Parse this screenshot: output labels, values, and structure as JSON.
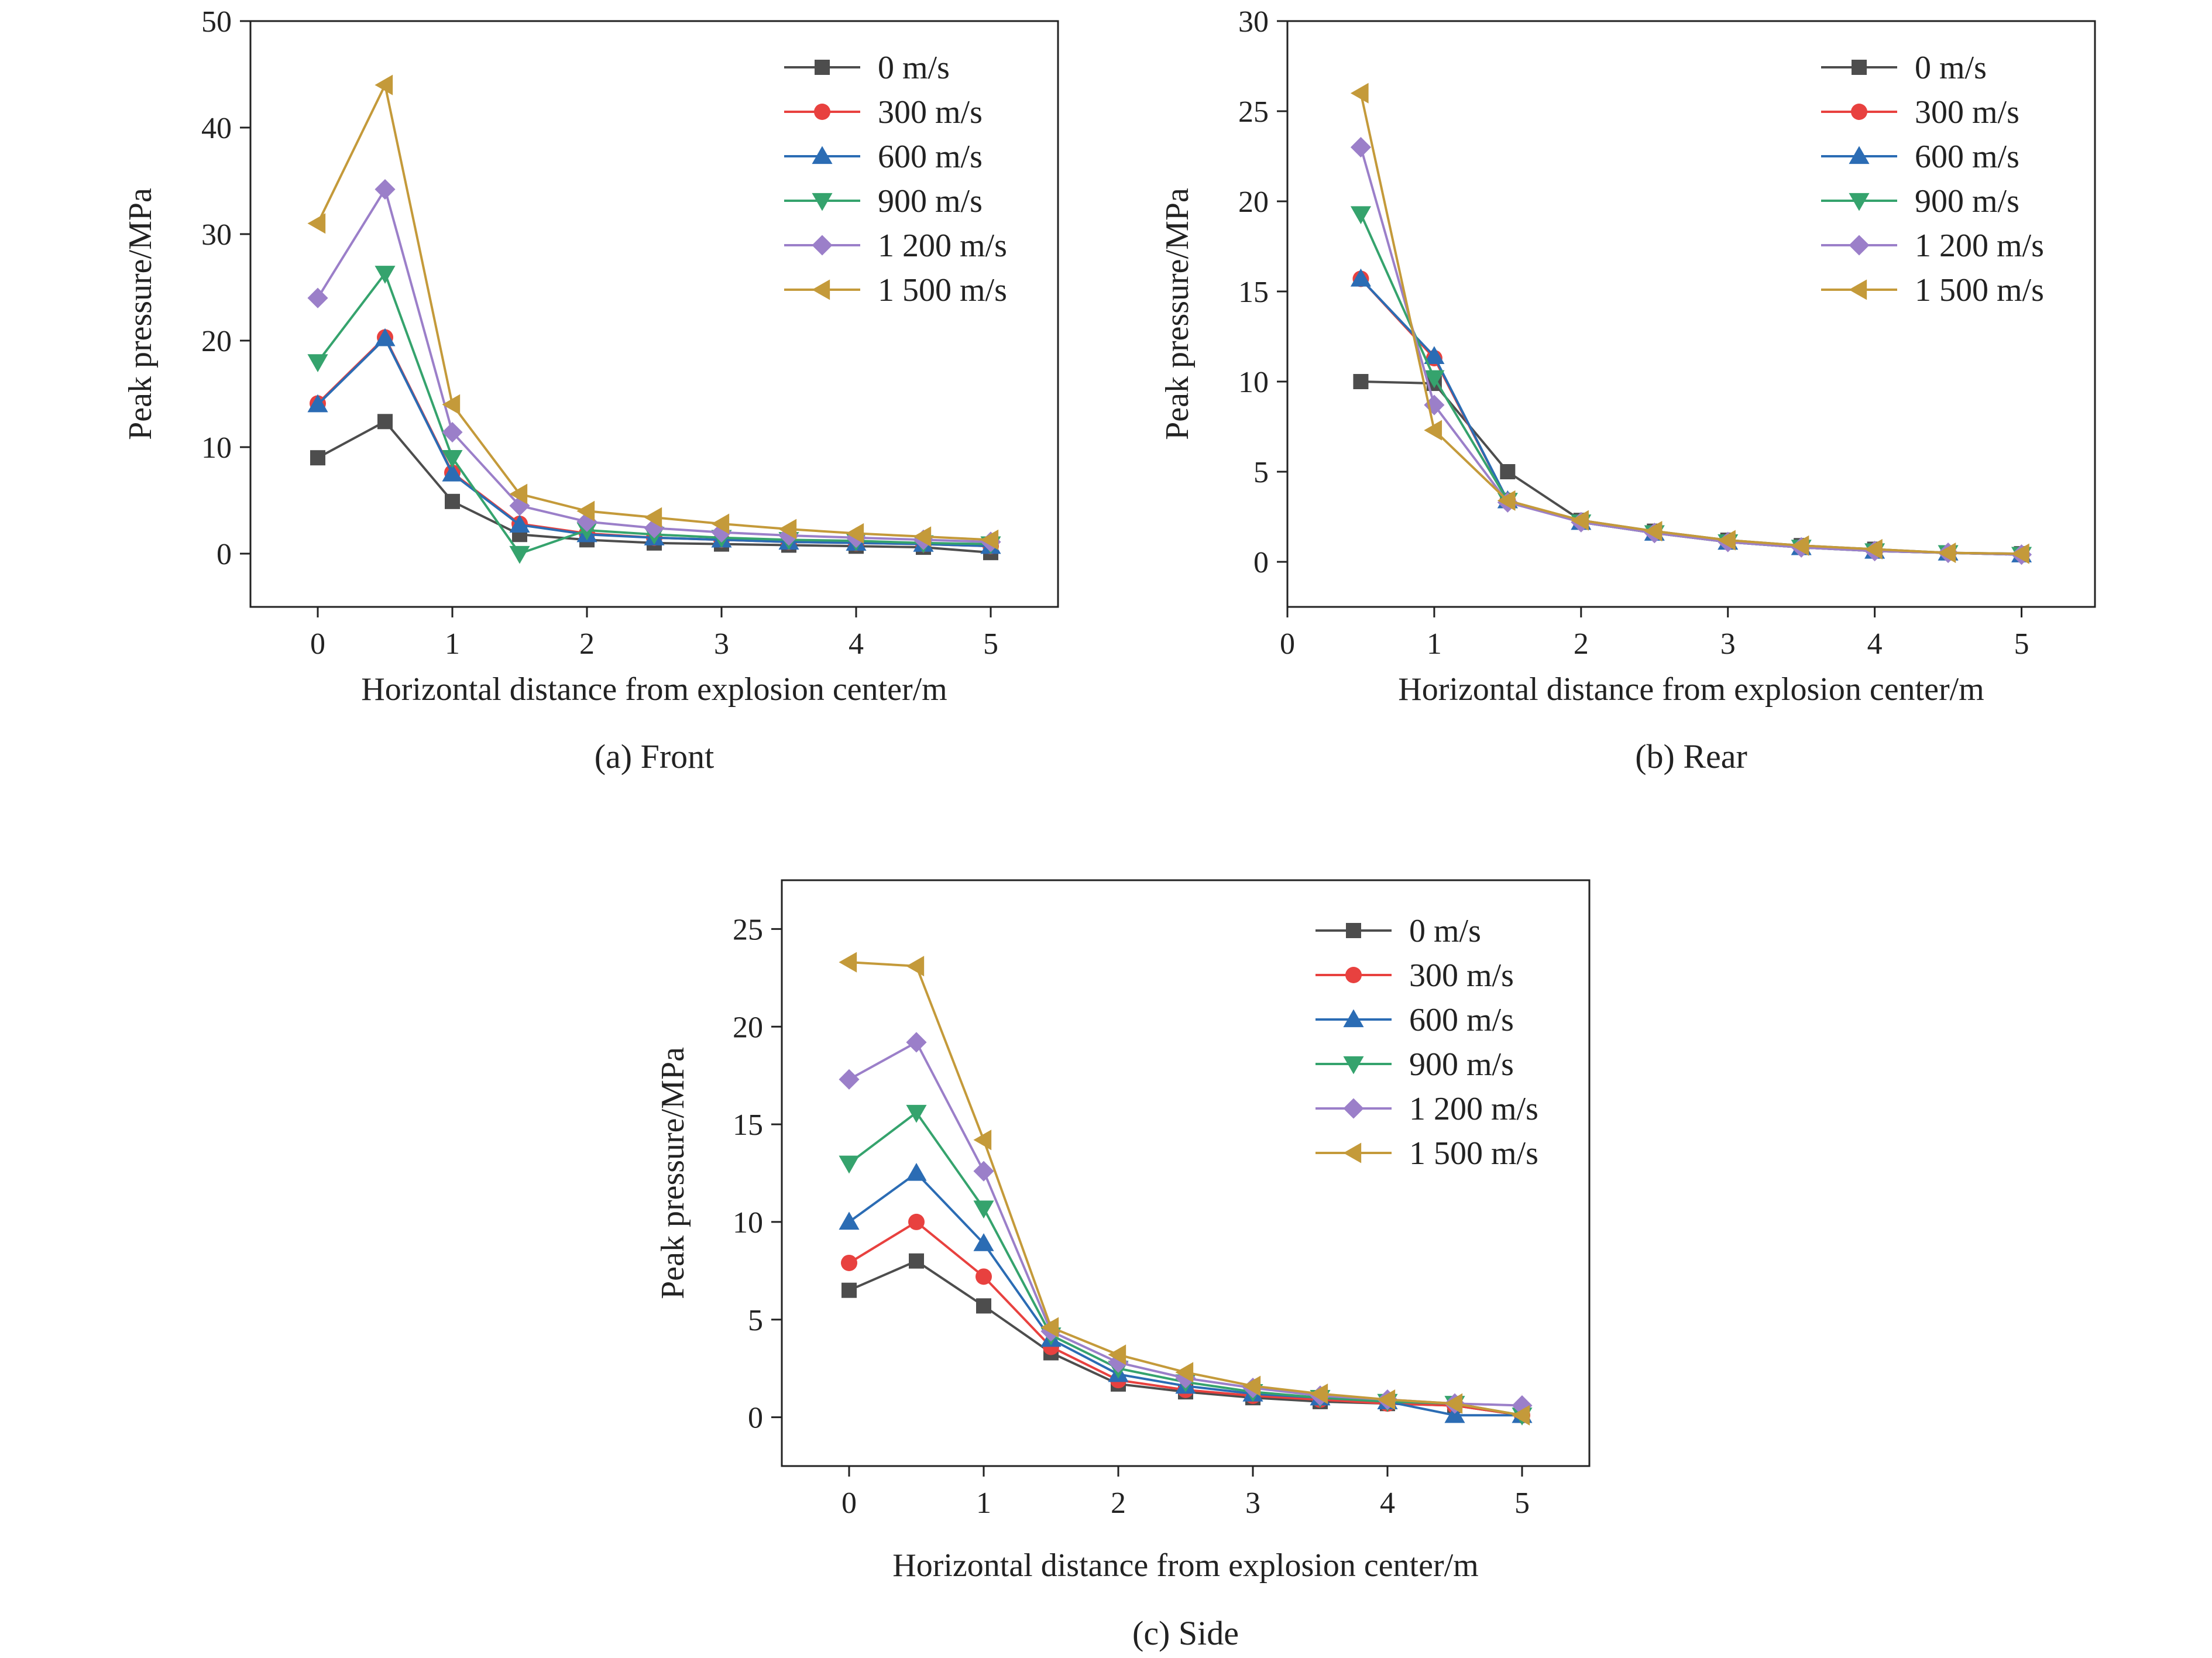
{
  "legend_title": "",
  "series_styles": [
    {
      "name": "0 m/s",
      "color": "#4d4d4d",
      "marker": "square"
    },
    {
      "name": "300 m/s",
      "color": "#e8413f",
      "marker": "circle"
    },
    {
      "name": "600 m/s",
      "color": "#2b6cb4",
      "marker": "triangle-up"
    },
    {
      "name": "900 m/s",
      "color": "#35a36d",
      "marker": "triangle-down"
    },
    {
      "name": "1 200 m/s",
      "color": "#9b7fc9",
      "marker": "diamond"
    },
    {
      "name": "1 500 m/s",
      "color": "#c49a3a",
      "marker": "triangle-left"
    }
  ],
  "chart_data": [
    {
      "type": "line",
      "caption": "(a) Front",
      "xlabel": "Horizontal distance from explosion center/m",
      "ylabel": "Peak pressure/MPa",
      "xlim": [
        -0.5,
        5.5
      ],
      "ylim": [
        -5,
        50
      ],
      "xticks": [
        0,
        1,
        2,
        3,
        4,
        5
      ],
      "yticks": [
        0,
        10,
        20,
        30,
        40,
        50
      ],
      "legend": "top-right",
      "x": [
        0,
        0.5,
        1,
        1.5,
        2,
        2.5,
        3,
        3.5,
        4,
        4.5,
        5
      ],
      "series": [
        {
          "name": "0 m/s",
          "values": [
            9.0,
            12.4,
            4.9,
            1.8,
            1.3,
            1.0,
            0.9,
            0.8,
            0.7,
            0.6,
            0.1
          ]
        },
        {
          "name": "300 m/s",
          "values": [
            14.1,
            20.3,
            7.6,
            2.8,
            1.9,
            1.5,
            1.3,
            1.1,
            1.0,
            0.9,
            0.7
          ]
        },
        {
          "name": "600 m/s",
          "values": [
            14.0,
            20.2,
            7.5,
            2.7,
            1.8,
            1.5,
            1.3,
            1.1,
            1.0,
            0.9,
            0.7
          ]
        },
        {
          "name": "900 m/s",
          "values": [
            18.0,
            26.3,
            9.0,
            0.0,
            2.2,
            1.8,
            1.5,
            1.3,
            1.2,
            1.0,
            0.9
          ]
        },
        {
          "name": "1 200 m/s",
          "values": [
            24.0,
            34.2,
            11.4,
            4.5,
            3.0,
            2.4,
            2.0,
            1.7,
            1.5,
            1.3,
            1.1
          ]
        },
        {
          "name": "1 500 m/s",
          "values": [
            31.0,
            44.0,
            14.0,
            5.6,
            4.0,
            3.4,
            2.8,
            2.3,
            1.9,
            1.6,
            1.3
          ]
        }
      ]
    },
    {
      "type": "line",
      "caption": "(b) Rear",
      "xlabel": "Horizontal distance from explosion center/m",
      "ylabel": "Peak pressure/MPa",
      "xlim": [
        0,
        5.5
      ],
      "ylim": [
        -2.5,
        30
      ],
      "xticks": [
        0,
        1,
        2,
        3,
        4,
        5
      ],
      "yticks": [
        0,
        5,
        10,
        15,
        20,
        25,
        30
      ],
      "legend": "top-right",
      "x": [
        0.5,
        1,
        1.5,
        2,
        2.5,
        3,
        3.5,
        4,
        4.5,
        5
      ],
      "series": [
        {
          "name": "0 m/s",
          "values": [
            10.0,
            9.9,
            5.0,
            2.3,
            1.7,
            1.2,
            0.9,
            0.7,
            0.5,
            0.45
          ]
        },
        {
          "name": "300 m/s",
          "values": [
            15.7,
            11.3,
            3.4,
            2.2,
            1.6,
            1.1,
            0.8,
            0.6,
            0.5,
            0.4
          ]
        },
        {
          "name": "600 m/s",
          "values": [
            15.7,
            11.4,
            3.4,
            2.2,
            1.6,
            1.1,
            0.8,
            0.6,
            0.5,
            0.4
          ]
        },
        {
          "name": "900 m/s",
          "values": [
            19.3,
            10.2,
            3.4,
            2.2,
            1.6,
            1.1,
            0.8,
            0.6,
            0.5,
            0.4
          ]
        },
        {
          "name": "1 200 m/s",
          "values": [
            23.0,
            8.7,
            3.3,
            2.2,
            1.6,
            1.1,
            0.8,
            0.6,
            0.5,
            0.4
          ]
        },
        {
          "name": "1 500 m/s",
          "values": [
            26.0,
            7.3,
            3.4,
            2.3,
            1.7,
            1.2,
            0.9,
            0.7,
            0.5,
            0.45
          ]
        }
      ]
    },
    {
      "type": "line",
      "caption": "(c) Side",
      "xlabel": "Horizontal distance from explosion center/m",
      "ylabel": "Peak pressure/MPa",
      "xlim": [
        -0.5,
        5.5
      ],
      "ylim": [
        -2.5,
        27.5
      ],
      "xticks": [
        0,
        1,
        2,
        3,
        4,
        5
      ],
      "yticks": [
        0,
        5,
        10,
        15,
        20,
        25
      ],
      "legend": "top-right",
      "x": [
        0,
        0.5,
        1,
        1.5,
        2,
        2.5,
        3,
        3.5,
        4,
        4.5,
        5
      ],
      "series": [
        {
          "name": "0 m/s",
          "values": [
            6.5,
            8.0,
            5.7,
            3.3,
            1.7,
            1.3,
            1.0,
            0.8,
            0.7,
            0.6,
            0.1
          ]
        },
        {
          "name": "300 m/s",
          "values": [
            7.9,
            10.0,
            7.2,
            3.6,
            1.9,
            1.4,
            1.1,
            0.9,
            0.7,
            0.6,
            0.1
          ]
        },
        {
          "name": "600 m/s",
          "values": [
            10.0,
            12.5,
            8.9,
            4.0,
            2.2,
            1.6,
            1.2,
            1.0,
            0.8,
            0.1,
            0.1
          ]
        },
        {
          "name": "900 m/s",
          "values": [
            13.0,
            15.6,
            10.7,
            4.2,
            2.5,
            1.8,
            1.3,
            1.0,
            0.8,
            0.7,
            0.1
          ]
        },
        {
          "name": "1 200 m/s",
          "values": [
            17.3,
            19.2,
            12.6,
            4.4,
            2.8,
            2.0,
            1.5,
            1.1,
            0.9,
            0.7,
            0.6
          ]
        },
        {
          "name": "1 500 m/s",
          "values": [
            23.3,
            23.1,
            14.2,
            4.6,
            3.2,
            2.3,
            1.6,
            1.2,
            0.9,
            0.7,
            0.1
          ]
        }
      ]
    }
  ]
}
